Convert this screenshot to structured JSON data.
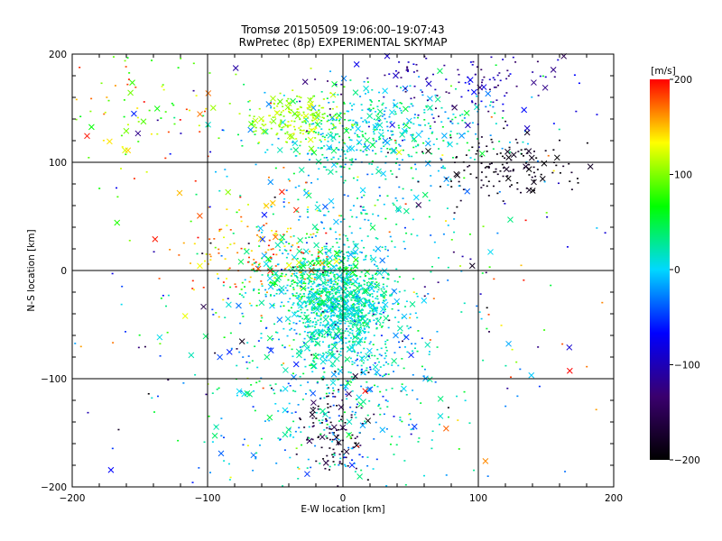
{
  "chart_data": {
    "type": "scatter",
    "title": "Tromsø 20150509 19:06:00–19:07:43",
    "subtitle": "RwPretec (8p) EXPERIMENTAL SKYMAP",
    "xlabel": "E-W location [km]",
    "ylabel": "N-S location [km]",
    "xlim": [
      -200,
      200
    ],
    "ylim": [
      -200,
      200
    ],
    "xticks": [
      "−200",
      "−100",
      "0",
      "100",
      "200"
    ],
    "yticks": [
      "−200",
      "−100",
      "0",
      "100",
      "200"
    ],
    "grid": true,
    "markers": [
      "dot",
      "cross"
    ],
    "colorbar": {
      "label": "[m/s]",
      "range": [
        -200,
        200
      ],
      "ticks": [
        "200",
        "100",
        "0",
        "−100",
        "−200"
      ],
      "colormap": [
        "#000000",
        "#3a006e",
        "#0000ff",
        "#00d8ff",
        "#00ff00",
        "#ffff00",
        "#ff0000"
      ]
    },
    "clusters": [
      {
        "center": [
          0,
          -35
        ],
        "spread": [
          18,
          25
        ],
        "count": 900,
        "velocity": [
          -10,
          45
        ]
      },
      {
        "center": [
          -20,
          -10
        ],
        "spread": [
          25,
          15
        ],
        "count": 350,
        "velocity": [
          -20,
          80
        ]
      },
      {
        "center": [
          25,
          130
        ],
        "spread": [
          45,
          20
        ],
        "count": 450,
        "velocity": [
          -30,
          60
        ]
      },
      {
        "center": [
          -35,
          140
        ],
        "spread": [
          20,
          10
        ],
        "count": 180,
        "velocity": [
          90,
          130
        ]
      },
      {
        "center": [
          120,
          95
        ],
        "spread": [
          30,
          15
        ],
        "count": 140,
        "velocity": [
          -200,
          -170
        ]
      },
      {
        "center": [
          -65,
          20
        ],
        "spread": [
          30,
          25
        ],
        "count": 140,
        "velocity": [
          120,
          200
        ]
      },
      {
        "center": [
          -5,
          -150
        ],
        "spread": [
          12,
          22
        ],
        "count": 110,
        "velocity": [
          -200,
          -140
        ]
      },
      {
        "center": [
          -10,
          -110
        ],
        "spread": [
          45,
          55
        ],
        "count": 500,
        "velocity": [
          -60,
          60
        ]
      },
      {
        "center": [
          10,
          40
        ],
        "spread": [
          35,
          55
        ],
        "count": 260,
        "velocity": [
          -40,
          50
        ]
      },
      {
        "center": [
          90,
          175
        ],
        "spread": [
          50,
          20
        ],
        "count": 150,
        "velocity": [
          -150,
          -60
        ]
      },
      {
        "center": [
          -140,
          150
        ],
        "spread": [
          40,
          35
        ],
        "count": 90,
        "velocity": [
          60,
          200
        ]
      },
      {
        "center": [
          0,
          0
        ],
        "spread": [
          130,
          130
        ],
        "count": 350,
        "velocity": [
          -200,
          200
        ]
      }
    ]
  }
}
